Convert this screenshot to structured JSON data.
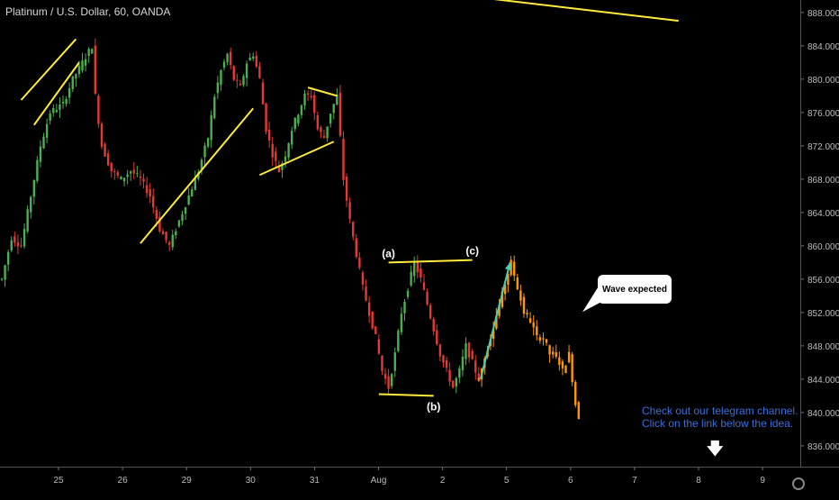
{
  "header": {
    "title": "Platinum / U.S. Dollar, 60, OANDA"
  },
  "annotations": {
    "wave_expected": "Wave expected",
    "label_a": "(a)",
    "label_b": "(b)",
    "label_c": "(c)",
    "note_line1": "Check out our telegram channel.",
    "note_line2": "Click on the link below the idea."
  },
  "colors": {
    "up": "#4caf50",
    "down": "#e53935",
    "projection": "#ff9800",
    "trendline": "#ffeb3b",
    "arrow": "#4dd0b0",
    "note_text": "#3b6fd8"
  },
  "icons": {
    "down_arrow": "down-arrow-icon",
    "settings": "gear-icon"
  },
  "chart_data": {
    "type": "candlestick",
    "title": "Platinum / U.S. Dollar, 60, OANDA",
    "y_ticks": [
      888,
      884,
      880,
      876,
      872,
      868,
      864,
      860,
      856,
      852,
      848,
      844,
      840,
      836
    ],
    "y_tick_labels": [
      "888.000",
      "884.000",
      "880.000",
      "876.000",
      "872.000",
      "868.000",
      "864.000",
      "860.000",
      "856.000",
      "852.000",
      "848.000",
      "844.000",
      "840.000",
      "836.000"
    ],
    "ylim": [
      833.5,
      889.5
    ],
    "x_tick_labels": [
      "25",
      "26",
      "29",
      "30",
      "31",
      "Aug",
      "2",
      "5",
      "6",
      "7",
      "8",
      "9"
    ],
    "path_points": [
      [
        0,
        856
      ],
      [
        3,
        861
      ],
      [
        6,
        860
      ],
      [
        9,
        866
      ],
      [
        12,
        872
      ],
      [
        15,
        876
      ],
      [
        19,
        877
      ],
      [
        22,
        880
      ],
      [
        25,
        882
      ],
      [
        28,
        884
      ],
      [
        29,
        878
      ],
      [
        31,
        872
      ],
      [
        34,
        869
      ],
      [
        37,
        868
      ],
      [
        40,
        869
      ],
      [
        43,
        868
      ],
      [
        46,
        866
      ],
      [
        49,
        862
      ],
      [
        52,
        860
      ],
      [
        55,
        863
      ],
      [
        58,
        866
      ],
      [
        61,
        869
      ],
      [
        64,
        873
      ],
      [
        66,
        878
      ],
      [
        68,
        881
      ],
      [
        70,
        883
      ],
      [
        72,
        880
      ],
      [
        74,
        879
      ],
      [
        76,
        882
      ],
      [
        78,
        883
      ],
      [
        80,
        880
      ],
      [
        82,
        874
      ],
      [
        84,
        871
      ],
      [
        86,
        869
      ],
      [
        88,
        871
      ],
      [
        90,
        874
      ],
      [
        92,
        876
      ],
      [
        94,
        878
      ],
      [
        96,
        878
      ],
      [
        98,
        874
      ],
      [
        100,
        873
      ],
      [
        102,
        876
      ],
      [
        104,
        878
      ],
      [
        106,
        868
      ],
      [
        108,
        863
      ],
      [
        110,
        859
      ],
      [
        112,
        855
      ],
      [
        114,
        852
      ],
      [
        116,
        849
      ],
      [
        118,
        845
      ],
      [
        120,
        843
      ],
      [
        122,
        847
      ],
      [
        124,
        852
      ],
      [
        126,
        855
      ],
      [
        128,
        858
      ],
      [
        130,
        856
      ],
      [
        132,
        853
      ],
      [
        134,
        850
      ],
      [
        136,
        847
      ],
      [
        138,
        845
      ],
      [
        140,
        843
      ],
      [
        142,
        845
      ],
      [
        144,
        848
      ],
      [
        146,
        846
      ],
      [
        148,
        844
      ]
    ],
    "projection_points": [
      [
        148,
        844
      ],
      [
        158,
        858
      ],
      [
        160,
        855
      ],
      [
        162,
        852
      ],
      [
        164,
        851
      ],
      [
        166,
        849
      ],
      [
        168,
        849
      ],
      [
        170,
        847
      ],
      [
        172,
        847
      ],
      [
        174,
        845
      ],
      [
        176,
        847
      ],
      [
        178,
        841
      ],
      [
        179,
        839.5
      ]
    ],
    "trendlines": [
      {
        "from": [
          6,
          877.5
        ],
        "to": [
          23,
          884.8
        ]
      },
      {
        "from": [
          10,
          874.5
        ],
        "to": [
          24,
          882
        ]
      },
      {
        "from": [
          43,
          860.3
        ],
        "to": [
          78,
          876.5
        ]
      },
      {
        "from": [
          80,
          868.5
        ],
        "to": [
          103,
          872.5
        ]
      },
      {
        "from": [
          95,
          879
        ],
        "to": [
          104,
          878
        ]
      },
      {
        "from": [
          120,
          858
        ],
        "to": [
          146,
          858.3
        ]
      },
      {
        "from": [
          117,
          842.2
        ],
        "to": [
          134,
          842
        ]
      },
      {
        "from": [
          56,
          894
        ],
        "to": [
          210,
          887
        ]
      }
    ],
    "wave_labels": [
      {
        "label": "(a)",
        "at": [
          120,
          858
        ]
      },
      {
        "label": "(b)",
        "at": [
          134,
          842
        ]
      },
      {
        "label": "(c)",
        "at": [
          146,
          858.3
        ]
      }
    ]
  }
}
